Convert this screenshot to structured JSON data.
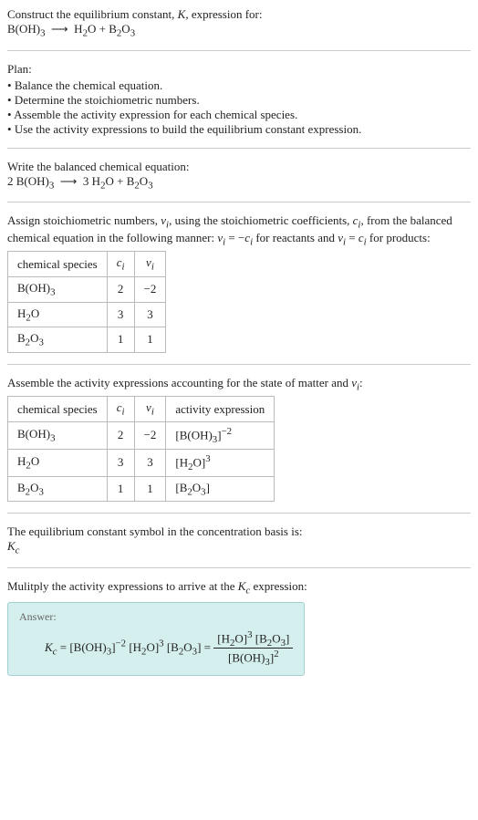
{
  "header": {
    "title_prefix": "Construct the equilibrium constant, ",
    "title_k": "K",
    "title_suffix": ", expression for:",
    "equation_html": "B(OH)<sub>3</sub> &nbsp;⟶&nbsp; H<sub>2</sub>O + B<sub>2</sub>O<sub>3</sub>"
  },
  "plan": {
    "label": "Plan:",
    "items": [
      "Balance the chemical equation.",
      "Determine the stoichiometric numbers.",
      "Assemble the activity expression for each chemical species.",
      "Use the activity expressions to build the equilibrium constant expression."
    ]
  },
  "balanced": {
    "label": "Write the balanced chemical equation:",
    "equation_html": "2 B(OH)<sub>3</sub> &nbsp;⟶&nbsp; 3 H<sub>2</sub>O + B<sub>2</sub>O<sub>3</sub>"
  },
  "stoich": {
    "intro_html": "Assign stoichiometric numbers, <i>ν<sub>i</sub></i>, using the stoichiometric coefficients, <i>c<sub>i</sub></i>, from the balanced chemical equation in the following manner: <i>ν<sub>i</sub></i> = −<i>c<sub>i</sub></i> for reactants and <i>ν<sub>i</sub></i> = <i>c<sub>i</sub></i> for products:",
    "headers": {
      "species": "chemical species",
      "ci_html": "<i>c<sub>i</sub></i>",
      "vi_html": "<i>ν<sub>i</sub></i>"
    },
    "rows": [
      {
        "species_html": "B(OH)<sub>3</sub>",
        "ci": "2",
        "vi": "−2"
      },
      {
        "species_html": "H<sub>2</sub>O",
        "ci": "3",
        "vi": "3"
      },
      {
        "species_html": "B<sub>2</sub>O<sub>3</sub>",
        "ci": "1",
        "vi": "1"
      }
    ]
  },
  "activity": {
    "intro_html": "Assemble the activity expressions accounting for the state of matter and <i>ν<sub>i</sub></i>:",
    "headers": {
      "species": "chemical species",
      "ci_html": "<i>c<sub>i</sub></i>",
      "vi_html": "<i>ν<sub>i</sub></i>",
      "expr": "activity expression"
    },
    "rows": [
      {
        "species_html": "B(OH)<sub>3</sub>",
        "ci": "2",
        "vi": "−2",
        "expr_html": "[B(OH)<sub>3</sub>]<sup>−2</sup>"
      },
      {
        "species_html": "H<sub>2</sub>O",
        "ci": "3",
        "vi": "3",
        "expr_html": "[H<sub>2</sub>O]<sup>3</sup>"
      },
      {
        "species_html": "B<sub>2</sub>O<sub>3</sub>",
        "ci": "1",
        "vi": "1",
        "expr_html": "[B<sub>2</sub>O<sub>3</sub>]"
      }
    ]
  },
  "symbol": {
    "label": "The equilibrium constant symbol in the concentration basis is:",
    "value_html": "<i>K<sub>c</sub></i>"
  },
  "final": {
    "label_html": "Mulitply the activity expressions to arrive at the <i>K<sub>c</sub></i> expression:",
    "answer_label": "Answer:",
    "kc_html": "<i>K<sub>c</sub></i> = [B(OH)<sub>3</sub>]<sup>−2</sup> [H<sub>2</sub>O]<sup>3</sup> [B<sub>2</sub>O<sub>3</sub>] = ",
    "frac_num_html": "[H<sub>2</sub>O]<sup>3</sup> [B<sub>2</sub>O<sub>3</sub>]",
    "frac_den_html": "[B(OH)<sub>3</sub>]<sup>2</sup>"
  },
  "colors": {
    "text": "#222222",
    "rule": "#cccccc",
    "table_border": "#bbbbbb",
    "answer_bg": "#d5efef",
    "answer_border": "#a0d0d0"
  }
}
